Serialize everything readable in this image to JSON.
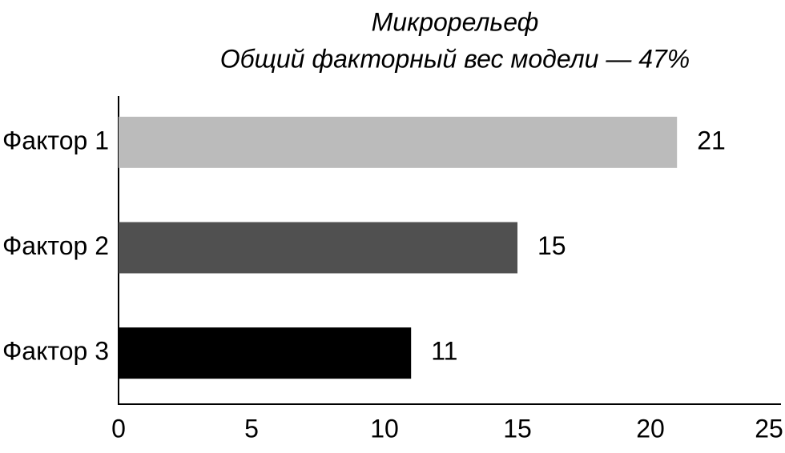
{
  "chart_data": {
    "type": "hbar",
    "title": "Микрорельеф",
    "subtitle": "Общий факторный вес модели — 47%",
    "categories": [
      "Фактор 1",
      "Фактор 2",
      "Фактор 3"
    ],
    "values": [
      21,
      15,
      11
    ],
    "colors": [
      "#bbbbbb",
      "#505050",
      "#000000"
    ],
    "xlim": [
      0,
      25
    ],
    "xticks": [
      0,
      5,
      10,
      15,
      20,
      25
    ],
    "grid": false
  }
}
